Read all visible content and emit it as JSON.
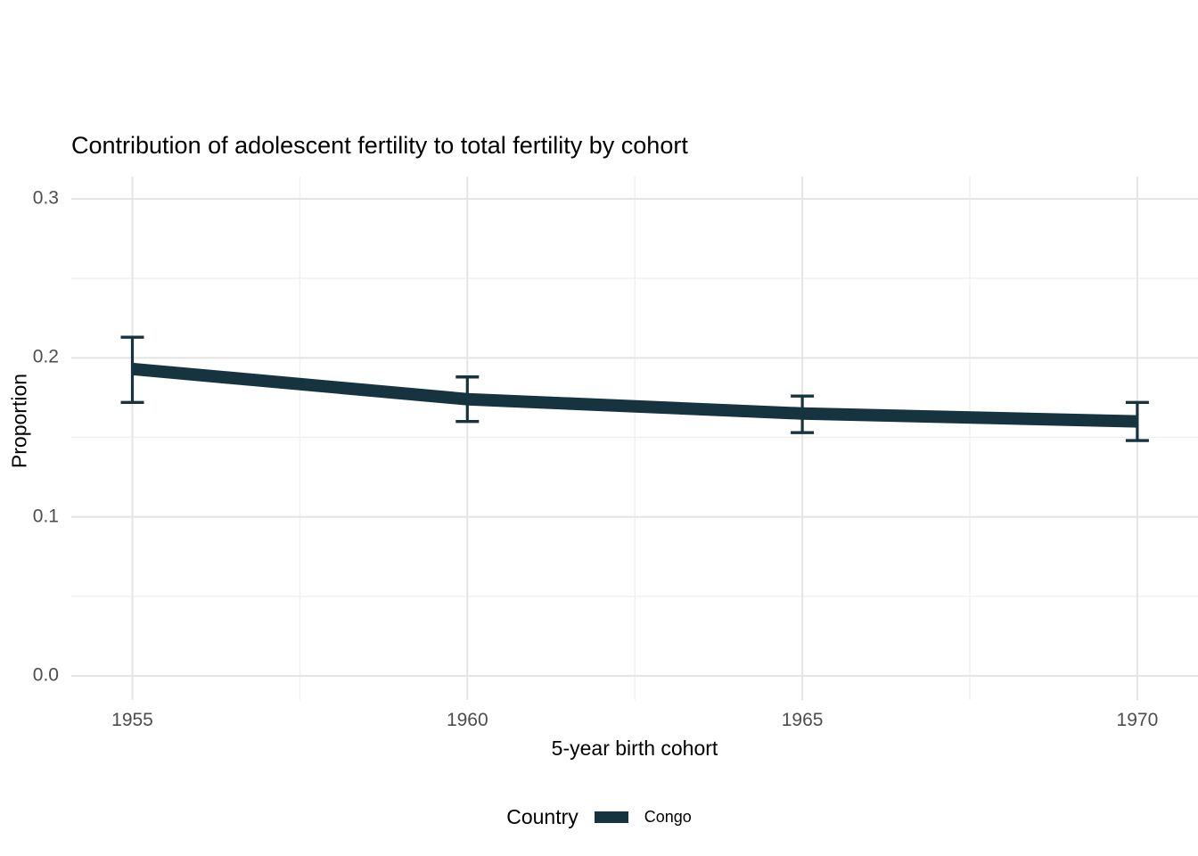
{
  "chart_data": {
    "type": "line",
    "title": "Contribution of adolescent fertility to total fertility by cohort",
    "xlabel": "5-year birth cohort",
    "ylabel": "Proportion",
    "xticks": [
      {
        "value": 1955,
        "label": "1955"
      },
      {
        "value": 1960,
        "label": "1960"
      },
      {
        "value": 1965,
        "label": "1965"
      },
      {
        "value": 1970,
        "label": "1970"
      }
    ],
    "yticks": [
      {
        "value": 0.0,
        "label": "0.0"
      },
      {
        "value": 0.1,
        "label": "0.1"
      },
      {
        "value": 0.2,
        "label": "0.2"
      },
      {
        "value": 0.3,
        "label": "0.3"
      }
    ],
    "ylim": [
      0,
      0.3
    ],
    "grid": {
      "major": true,
      "minor": true
    },
    "legend_position": "bottom",
    "x": [
      1955,
      1960,
      1965,
      1970
    ],
    "series": [
      {
        "name": "Congo",
        "color": "#16343f",
        "values": [
          0.193,
          0.174,
          0.165,
          0.16
        ],
        "ci_low": [
          0.172,
          0.16,
          0.153,
          0.148
        ],
        "ci_high": [
          0.213,
          0.188,
          0.176,
          0.172
        ]
      }
    ]
  },
  "legend": {
    "title": "Country",
    "entries": [
      {
        "label": "Congo",
        "color": "#16343f"
      }
    ]
  }
}
